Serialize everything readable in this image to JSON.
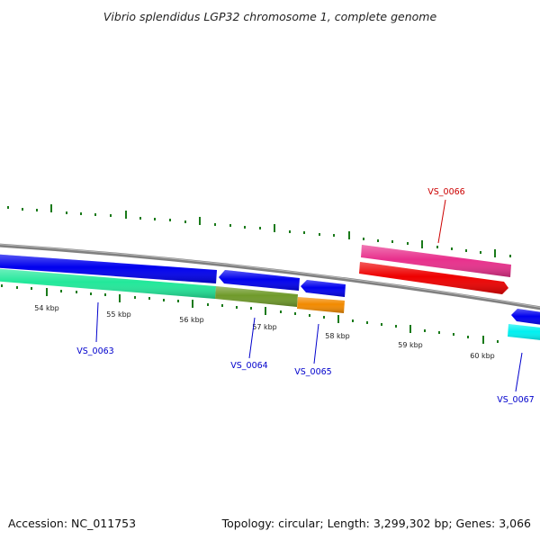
{
  "title": "Vibrio splendidus LGP32 chromosome 1, complete genome",
  "footer": {
    "accession": "Accession: NC_011753",
    "summary": "Topology: circular; Length: 3,299,302 bp; Genes: 3,066"
  },
  "kbp_labels": [
    "54 kbp",
    "55 kbp",
    "56 kbp",
    "57 kbp",
    "58 kbp",
    "59 kbp",
    "60 kbp"
  ],
  "gene_labels": {
    "vs0063": "VS_0063",
    "vs0064": "VS_0064",
    "vs0065": "VS_0065",
    "vs0066": "VS_0066",
    "vs0067": "VS_0067"
  },
  "colors": {
    "backbone": "#808080",
    "tick": "#1a7a1a",
    "label_forward": "#cc0000",
    "label_reverse": "#0000cc",
    "magenta": "#e8308c",
    "red": "#ee0000",
    "blue": "#0000ee",
    "mint": "#22e89a",
    "olive": "#6f9a2a",
    "orange": "#f28a00",
    "cyan": "#00f0f0"
  }
}
